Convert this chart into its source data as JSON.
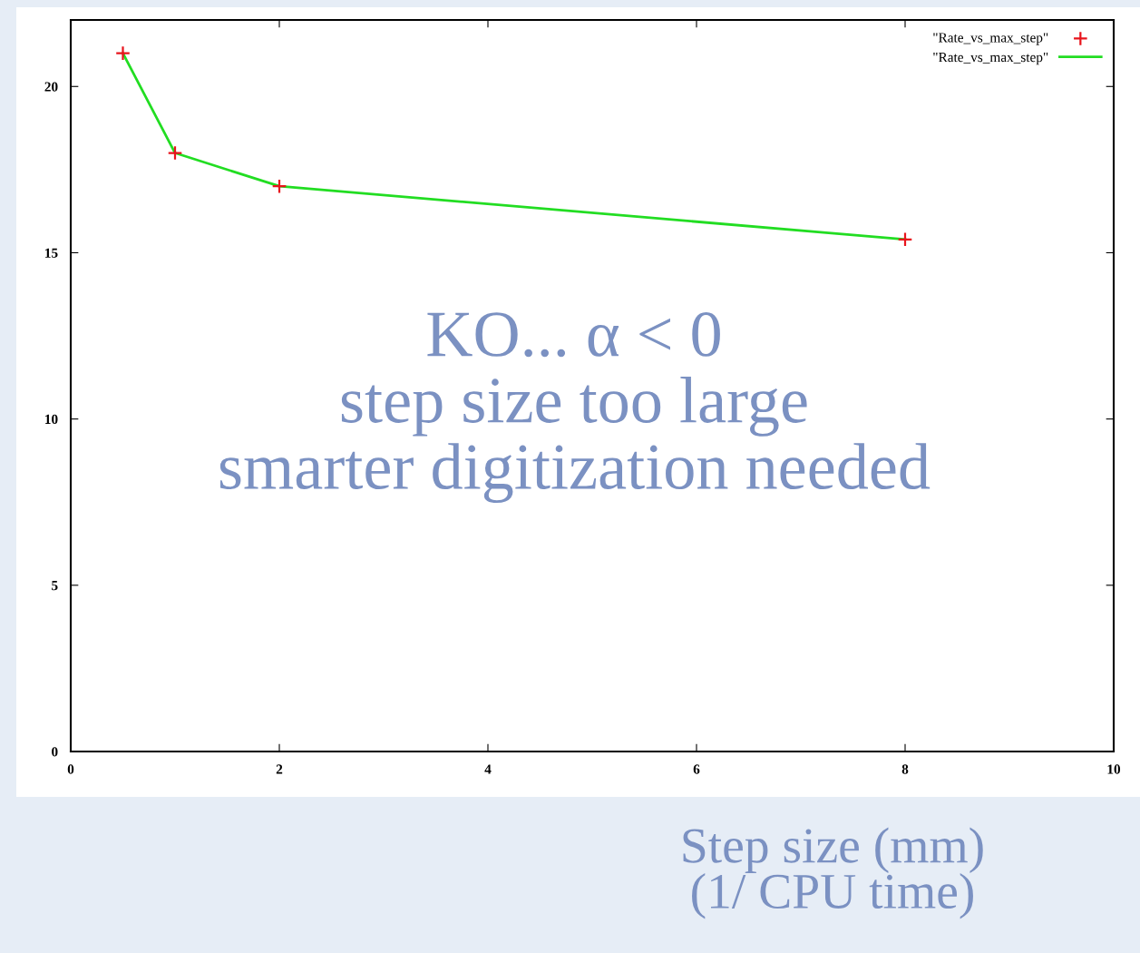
{
  "chart_data": {
    "type": "line",
    "x": [
      0.5,
      1,
      2,
      8
    ],
    "series": [
      {
        "name": "\"Rate_vs_max_step\"",
        "type": "scatter",
        "color": "#e8141c",
        "marker": "cross",
        "values": [
          21,
          18,
          17,
          15.4
        ]
      },
      {
        "name": "\"Rate_vs_max_step\"",
        "color": "#22dd22",
        "marker": "none",
        "line_style": "solid",
        "values": [
          21,
          18,
          17,
          15.4
        ]
      }
    ],
    "xlabel": "Step size (mm)\n(1/ CPU time)",
    "annotations": [
      "KO... α < 0\nstep size too large\nsmarter digitization needed"
    ],
    "xlim": [
      0,
      10
    ],
    "xticks": [
      0,
      2,
      4,
      6,
      8,
      10
    ],
    "ylim": [
      0,
      22
    ],
    "yticks": [
      0,
      5,
      10,
      15,
      20
    ],
    "grid": false,
    "legend": "top right"
  }
}
